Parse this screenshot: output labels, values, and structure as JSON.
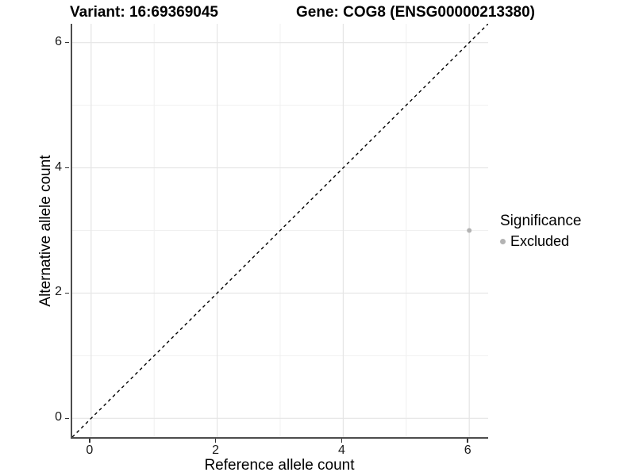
{
  "chart_data": {
    "type": "scatter",
    "titles": [
      "Variant: 16:69369045",
      "Gene: COG8 (ENSG00000213380)"
    ],
    "xlabel": "Reference allele count",
    "ylabel": "Alternative allele count",
    "xlim": [
      -0.3,
      6.3
    ],
    "ylim": [
      -0.3,
      6.3
    ],
    "xticks": [
      0,
      2,
      4,
      6
    ],
    "yticks": [
      0,
      2,
      4,
      6
    ],
    "xticks_minor": [
      1,
      3,
      5
    ],
    "yticks_minor": [
      1,
      3,
      5
    ],
    "grid": "major+minor",
    "reference_line": {
      "kind": "identity y=x",
      "linetype": "dashed",
      "color": "#000000",
      "from": [
        -0.3,
        -0.3
      ],
      "to": [
        6.3,
        6.3
      ]
    },
    "series": [
      {
        "name": "Excluded",
        "color": "#b3b3b3",
        "points": [
          {
            "x": 6,
            "y": 3
          }
        ]
      }
    ],
    "legend": {
      "title": "Significance",
      "position": "right",
      "entries": [
        {
          "label": "Excluded",
          "color": "#b3b3b3"
        }
      ]
    },
    "colors": {
      "background": "#ffffff",
      "axis_line": "#4d4d4d",
      "tick_mark": "#333333",
      "grid_major": "#e5e5e5",
      "grid_minor": "#f0f0f0",
      "point": "#b3b3b3",
      "dashed_line": "#000000"
    }
  }
}
